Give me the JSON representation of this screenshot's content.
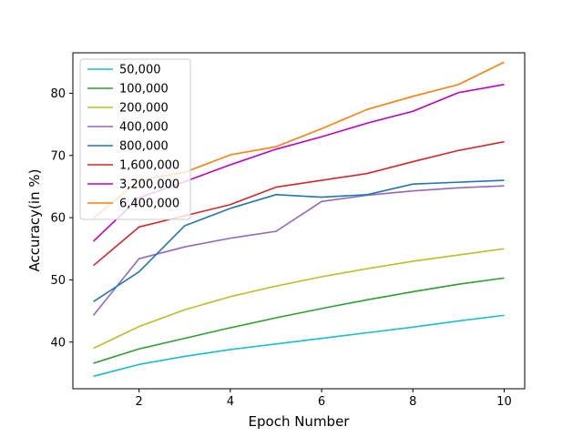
{
  "chart_data": {
    "type": "line",
    "title": "",
    "xlabel": "Epoch Number",
    "ylabel": "Accuracy(in %)",
    "x": [
      1,
      2,
      3,
      4,
      5,
      6,
      7,
      8,
      9,
      10
    ],
    "xlim": [
      0.55,
      10.45
    ],
    "ylim": [
      32.5,
      86.5
    ],
    "xticks": [
      2,
      4,
      6,
      8,
      10
    ],
    "yticks": [
      40,
      50,
      60,
      70,
      80
    ],
    "grid": false,
    "legend_position": "top-left",
    "series": [
      {
        "name": "50,000",
        "color": "#17becf",
        "values": [
          34.5,
          36.4,
          37.7,
          38.8,
          39.7,
          40.6,
          41.5,
          42.4,
          43.4,
          44.3
        ]
      },
      {
        "name": "100,000",
        "color": "#2ca02c",
        "values": [
          36.6,
          38.9,
          40.6,
          42.3,
          43.9,
          45.4,
          46.8,
          48.1,
          49.3,
          50.3
        ]
      },
      {
        "name": "200,000",
        "color": "#bcbd22",
        "values": [
          39.0,
          42.5,
          45.2,
          47.3,
          49.0,
          50.5,
          51.8,
          53.0,
          54.0,
          55.0
        ]
      },
      {
        "name": "400,000",
        "color": "#9467bd",
        "values": [
          44.3,
          53.4,
          55.3,
          56.7,
          57.8,
          62.6,
          63.6,
          64.3,
          64.8,
          65.1
        ]
      },
      {
        "name": "800,000",
        "color": "#1f77b4",
        "values": [
          46.5,
          51.3,
          58.7,
          61.5,
          63.7,
          63.3,
          63.7,
          65.4,
          65.7,
          66.0
        ]
      },
      {
        "name": "1,600,000",
        "color": "#d62728",
        "values": [
          52.3,
          58.5,
          60.3,
          62.1,
          64.9,
          66.0,
          67.1,
          69.0,
          70.8,
          72.2
        ]
      },
      {
        "name": "3,200,000",
        "color": "#c000c0",
        "values": [
          56.2,
          63.2,
          65.8,
          68.5,
          71.0,
          73.0,
          75.2,
          77.1,
          80.1,
          81.4
        ]
      },
      {
        "name": "6,400,000",
        "color": "#ff7f0e",
        "values": [
          59.9,
          66.0,
          67.3,
          70.1,
          71.4,
          74.3,
          77.4,
          79.5,
          81.4,
          85.0
        ]
      }
    ]
  }
}
